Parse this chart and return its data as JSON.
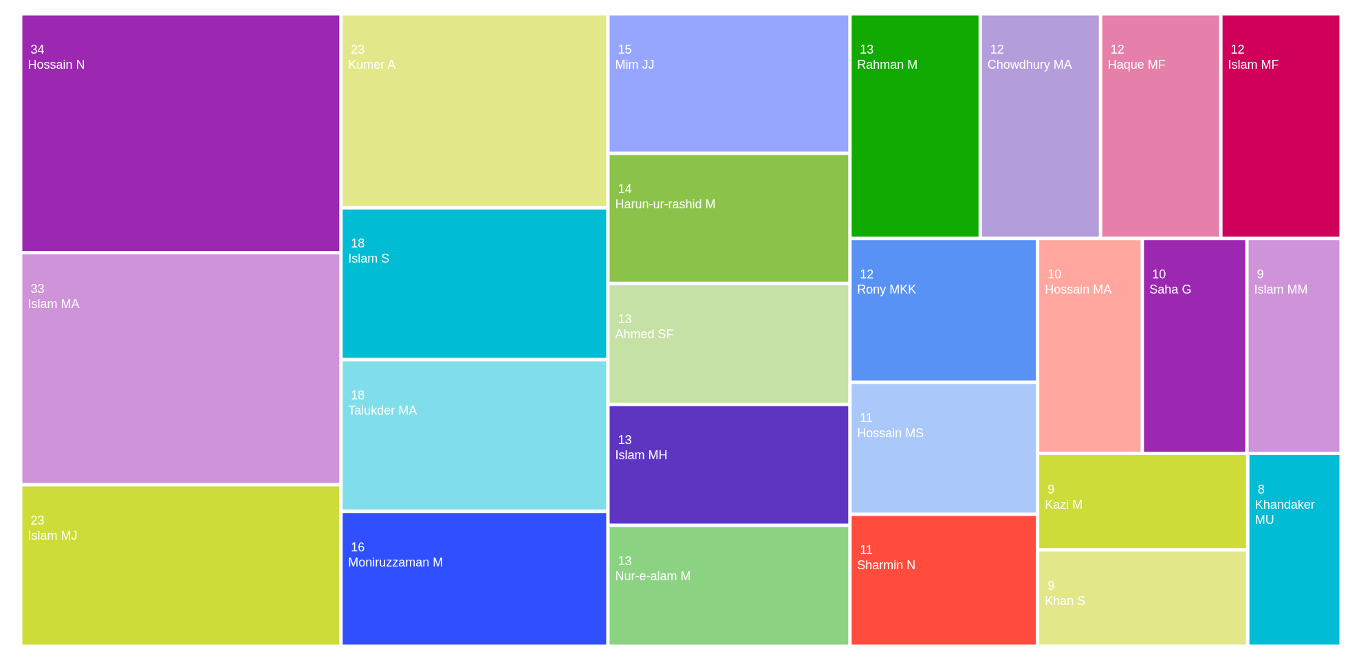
{
  "chart_data": {
    "type": "other",
    "data_labels": true,
    "categories": [
      "Hossain N",
      "Islam MA",
      "Islam MJ",
      "Kumer A",
      "Islam S",
      "Talukder MA",
      "Moniruzzaman M",
      "Mim JJ",
      "Harun-ur-rashid M",
      "Ahmed SF",
      "Islam MH",
      "Nur-e-alam M",
      "Rahman M",
      "Chowdhury MA",
      "Haque MF",
      "Islam MF",
      "Rony MKK",
      "Hossain MS",
      "Sharmin N",
      "Hossain MA",
      "Saha G",
      "Islam MM",
      "Kazi M",
      "Khan S",
      "Khandaker MU"
    ],
    "values": [
      34,
      33,
      23,
      23,
      18,
      18,
      16,
      15,
      14,
      13,
      13,
      13,
      13,
      12,
      12,
      12,
      12,
      11,
      11,
      10,
      10,
      9,
      9,
      9,
      8
    ],
    "colors": [
      "#9c27b0",
      "#ce93d8",
      "#cddc39",
      "#e2e88a",
      "#00bcd4",
      "#80deea",
      "#304ffe",
      "#96a6fe",
      "#8bc34a",
      "#c5e1a5",
      "#5e35c1",
      "#8bd383",
      "#11aa00",
      "#b39ddb",
      "#e67fa9",
      "#d0005a",
      "#5892f5",
      "#aac8fa",
      "#ff4c3c",
      "#ffa69e",
      "#9c27b0",
      "#ce93d8",
      "#cddc39",
      "#e2e88a",
      "#00bcd4"
    ]
  }
}
